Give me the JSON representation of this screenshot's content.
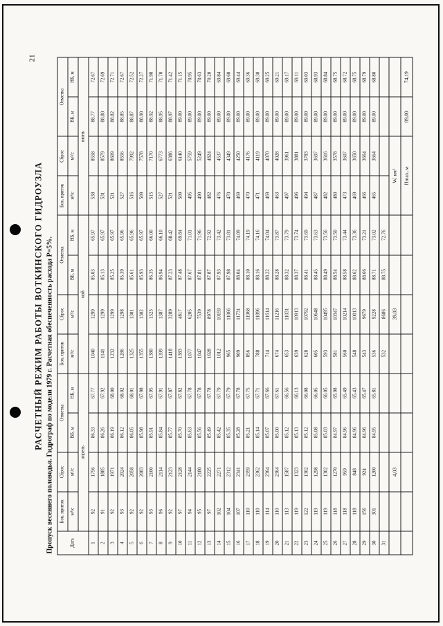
{
  "colors": {
    "paper": "#f9f8f4",
    "ink": "#141414"
  },
  "page": {
    "number": "21"
  },
  "title": "РАСЧЕТНЫЙ РЕЖИМ РАБОТЫ ВОТКИНСКОГО ГИДРОУЗЛА",
  "subtitle": "Пропуск весеннего половодья. Гидрограф по модели 1979 г. Расчетная обеспеченность расхода Р=5%.",
  "table": {
    "headers": {
      "date": "Дата",
      "groups": [
        "Бок. приток",
        "Сброс",
        "Отметка"
      ],
      "unit_flow": "м³/с",
      "unit_vb": "ВБ, м",
      "unit_nb": "НБ, м",
      "months": [
        "апрель",
        "май",
        "июнь"
      ]
    },
    "rows": [
      [
        "1",
        "92",
        "1756",
        "86.33",
        "67.77",
        "1040",
        "1299",
        "85.03",
        "65.97",
        "538",
        "8558",
        "88.77",
        "72.67"
      ],
      [
        "2",
        "91",
        "1885",
        "86.26",
        "67.92",
        "1141",
        "1299",
        "85.13",
        "65.97",
        "531",
        "8579",
        "88.80",
        "72.69"
      ],
      [
        "3",
        "92",
        "1971",
        "86.19",
        "68.00",
        "1232",
        "1299",
        "85.25",
        "65.97",
        "521",
        "8609",
        "88.82",
        "72.71"
      ],
      [
        "4",
        "93",
        "2024",
        "86.12",
        "68.02",
        "1286",
        "1298",
        "85.39",
        "65.96",
        "527",
        "8556",
        "88.85",
        "72.67"
      ],
      [
        "5",
        "92",
        "2058",
        "86.05",
        "68.01",
        "1325",
        "1301",
        "85.61",
        "65.96",
        "516",
        "7992",
        "88.87",
        "72.52"
      ],
      [
        "6",
        "92",
        "2083",
        "85.98",
        "67.98",
        "1355",
        "1302",
        "85.93",
        "65.97",
        "509",
        "7578",
        "88.90",
        "72.27"
      ],
      [
        "7",
        "93",
        "2100",
        "85.91",
        "67.95",
        "1380",
        "1323",
        "86.35",
        "66.00",
        "515",
        "7170",
        "88.92",
        "71.98"
      ],
      [
        "8",
        "96",
        "2114",
        "85.84",
        "67.91",
        "1399",
        "1387",
        "86.94",
        "66.10",
        "527",
        "6773",
        "88.95",
        "71.70"
      ],
      [
        "9",
        "92",
        "2123",
        "85.77",
        "67.87",
        "1418",
        "3289",
        "87.23",
        "68.42",
        "521",
        "6386",
        "88.97",
        "71.42"
      ],
      [
        "10",
        "97",
        "2128",
        "85.70",
        "67.82",
        "1383",
        "4817",
        "87.48",
        "69.84",
        "509",
        "6140",
        "89.00",
        "71.15"
      ],
      [
        "11",
        "94",
        "2144",
        "85.63",
        "67.78",
        "1077",
        "6205",
        "87.67",
        "71.01",
        "495",
        "5759",
        "89.00",
        "70.95"
      ],
      [
        "12",
        "95",
        "2180",
        "85.56",
        "67.78",
        "1047",
        "7539",
        "87.81",
        "71.96",
        "490",
        "5249",
        "89.00",
        "70.63"
      ],
      [
        "13",
        "97",
        "2225",
        "85.49",
        "67.78",
        "1028",
        "8978",
        "87.87",
        "72.92",
        "482",
        "4824",
        "89.00",
        "70.20"
      ],
      [
        "14",
        "102",
        "2271",
        "85.42",
        "67.79",
        "1012",
        "10159",
        "87.93",
        "73.42",
        "476",
        "4537",
        "89.00",
        "69.84"
      ],
      [
        "15",
        "104",
        "2312",
        "85.35",
        "67.79",
        "965",
        "11066",
        "87.98",
        "73.81",
        "470",
        "4349",
        "89.00",
        "69.60"
      ],
      [
        "16",
        "107",
        "2341",
        "85.28",
        "67.78",
        "909",
        "11731",
        "88.04",
        "74.09",
        "469",
        "4250",
        "89.00",
        "69.44"
      ],
      [
        "17",
        "110",
        "2359",
        "85.21",
        "67.75",
        "856",
        "11968",
        "88.10",
        "74.19",
        "470",
        "4176",
        "89.00",
        "69.36"
      ],
      [
        "18",
        "110",
        "2362",
        "85.14",
        "67.71",
        "788",
        "11896",
        "88.16",
        "74.16",
        "471",
        "4119",
        "89.00",
        "69.30"
      ],
      [
        "19",
        "114",
        "2364",
        "85.07",
        "67.66",
        "714",
        "11614",
        "88.22",
        "74.04",
        "469",
        "4070",
        "89.00",
        "69.25"
      ],
      [
        "20",
        "110",
        "2364",
        "85.00",
        "67.61",
        "674",
        "11216",
        "88.28",
        "73.87",
        "463",
        "4028",
        "89.00",
        "69.21"
      ],
      [
        "21",
        "113",
        "1587",
        "85.12",
        "66.56",
        "653",
        "11031",
        "88.32",
        "73.79",
        "497",
        "3961",
        "89.00",
        "69.17"
      ],
      [
        "22",
        "119",
        "1323",
        "85.13",
        "66.13",
        "639",
        "10913",
        "88.37",
        "73.74",
        "496",
        "3881",
        "89.00",
        "69.11"
      ],
      [
        "23",
        "122",
        "1302",
        "85.12",
        "66.08",
        "628",
        "10792",
        "88.41",
        "73.69",
        "494",
        "3783",
        "89.00",
        "69.03"
      ],
      [
        "24",
        "119",
        "1298",
        "85.08",
        "66.05",
        "605",
        "10648",
        "88.45",
        "73.63",
        "487",
        "3697",
        "89.00",
        "68.93"
      ],
      [
        "25",
        "119",
        "1302",
        "85.03",
        "66.05",
        "593",
        "10495",
        "88.49",
        "73.56",
        "482",
        "3616",
        "89.00",
        "68.84"
      ],
      [
        "26",
        "118",
        "1270",
        "84.97",
        "65.98",
        "581",
        "10347",
        "88.54",
        "73.50",
        "480",
        "3578",
        "89.00",
        "68.75"
      ],
      [
        "27",
        "118",
        "959",
        "84.96",
        "65.49",
        "560",
        "10214",
        "88.58",
        "73.44",
        "473",
        "3607",
        "89.00",
        "68.72"
      ],
      [
        "28",
        "118",
        "848",
        "84.96",
        "65.43",
        "548",
        "10013",
        "88.62",
        "73.36",
        "469",
        "3650",
        "89.00",
        "68.75"
      ],
      [
        "29",
        "156",
        "924",
        "84.96",
        "65.47",
        "543",
        "9679",
        "88.66",
        "73.21",
        "466",
        "3664",
        "89.00",
        "68.79"
      ],
      [
        "30",
        "301",
        "1200",
        "84.95",
        "65.81",
        "536",
        "9228",
        "88.71",
        "73.02",
        "465",
        "3664",
        "89.00",
        "68.80"
      ],
      [
        "31",
        "",
        "",
        "",
        "",
        "532",
        "8686",
        "88.75",
        "72.76",
        "",
        "",
        "",
        ""
      ]
    ],
    "summary": {
      "w_label": "W, км³",
      "w_april": "4,03",
      "w_may": "39,03",
      "hmax_label": "Нmax, м",
      "hmax_vb": "89,00",
      "hmax_nb": "74,19"
    }
  }
}
